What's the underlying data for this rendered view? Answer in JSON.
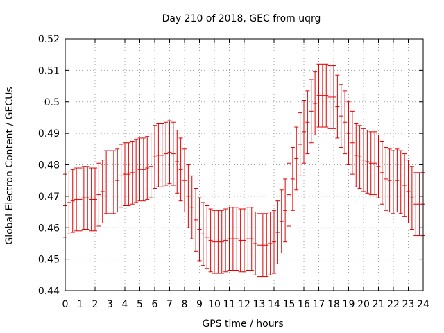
{
  "chart_data": {
    "type": "scatter",
    "title": "Day 210 of 2018, GEC from uqrg",
    "xlabel": "GPS time / hours",
    "ylabel": "Global Electron Content / GECUs",
    "xlim": [
      0,
      24
    ],
    "ylim": [
      0.44,
      0.52
    ],
    "grid": true,
    "error_bars": true,
    "error_half_width": 0.01,
    "xticks": [
      "0",
      "1",
      "2",
      "3",
      "4",
      "5",
      "6",
      "7",
      "8",
      "9",
      "10",
      "11",
      "12",
      "13",
      "14",
      "15",
      "16",
      "17",
      "18",
      "19",
      "20",
      "21",
      "22",
      "23",
      "24"
    ],
    "yticks": [
      "0.44",
      "0.45",
      "0.46",
      "0.47",
      "0.48",
      "0.49",
      "0.5",
      "0.51",
      "0.52"
    ],
    "x": [
      0,
      0.25,
      0.5,
      0.75,
      1,
      1.25,
      1.5,
      1.75,
      2,
      2.25,
      2.5,
      2.75,
      3,
      3.25,
      3.5,
      3.75,
      4,
      4.25,
      4.5,
      4.75,
      5,
      5.25,
      5.5,
      5.75,
      6,
      6.25,
      6.5,
      6.75,
      7,
      7.25,
      7.5,
      7.75,
      8,
      8.25,
      8.5,
      8.75,
      9,
      9.25,
      9.5,
      9.75,
      10,
      10.25,
      10.5,
      10.75,
      11,
      11.25,
      11.5,
      11.75,
      12,
      12.25,
      12.5,
      12.75,
      13,
      13.25,
      13.5,
      13.75,
      14,
      14.25,
      14.5,
      14.75,
      15,
      15.25,
      15.5,
      15.75,
      16,
      16.25,
      16.5,
      16.75,
      17,
      17.25,
      17.5,
      17.75,
      18,
      18.25,
      18.5,
      18.75,
      19,
      19.25,
      19.5,
      19.75,
      20,
      20.25,
      20.5,
      20.75,
      21,
      21.25,
      21.5,
      21.75,
      22,
      22.25,
      22.5,
      22.75,
      23,
      23.25,
      23.5,
      23.75,
      24
    ],
    "values": [
      0.467,
      0.468,
      0.4685,
      0.469,
      0.469,
      0.4695,
      0.4695,
      0.469,
      0.469,
      0.4705,
      0.4715,
      0.4745,
      0.4745,
      0.4745,
      0.475,
      0.4765,
      0.477,
      0.477,
      0.4775,
      0.478,
      0.4785,
      0.4785,
      0.479,
      0.4795,
      0.4825,
      0.483,
      0.483,
      0.4835,
      0.484,
      0.4835,
      0.481,
      0.4785,
      0.475,
      0.47,
      0.4665,
      0.4625,
      0.4595,
      0.458,
      0.457,
      0.456,
      0.4555,
      0.4555,
      0.4555,
      0.456,
      0.4565,
      0.4565,
      0.4565,
      0.456,
      0.456,
      0.4565,
      0.4565,
      0.455,
      0.4545,
      0.4545,
      0.4545,
      0.455,
      0.4555,
      0.4585,
      0.462,
      0.4655,
      0.4705,
      0.4755,
      0.482,
      0.4865,
      0.4905,
      0.4935,
      0.497,
      0.4995,
      0.502,
      0.502,
      0.502,
      0.5015,
      0.5015,
      0.4985,
      0.4955,
      0.4935,
      0.49,
      0.487,
      0.483,
      0.4825,
      0.4815,
      0.481,
      0.4805,
      0.4805,
      0.4795,
      0.4775,
      0.4755,
      0.475,
      0.4745,
      0.475,
      0.4745,
      0.4735,
      0.4715,
      0.4695,
      0.4675,
      0.4675,
      0.4675
    ]
  }
}
